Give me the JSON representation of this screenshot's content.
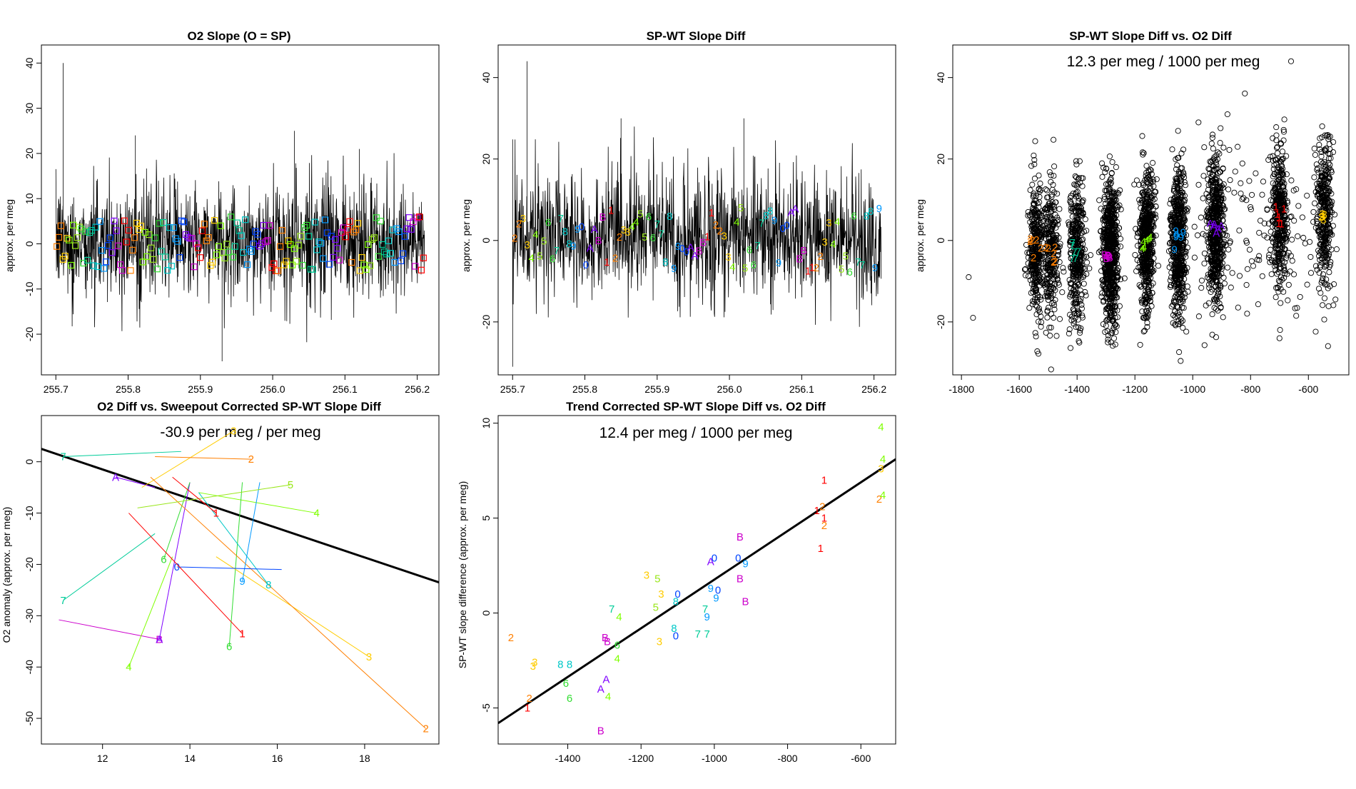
{
  "figure": {
    "background": "#ffffff"
  },
  "palette": {
    "1": "#ff0000",
    "2": "#ff7f00",
    "3": "#ffcc00",
    "4": "#7fff00",
    "5": "#99e61a",
    "6": "#33dd33",
    "7": "#00cc99",
    "8": "#00c8c8",
    "9": "#0099ff",
    "0": "#0044ff",
    "A": "#7f00ff",
    "B": "#cc00cc"
  },
  "chart_data": [
    {
      "id": "p1",
      "type": "line",
      "title": "O2 Slope (O = SP)",
      "xlabel": "",
      "ylabel": "approx. per meg",
      "xlim": [
        255.68,
        256.23
      ],
      "ylim": [
        -29,
        44
      ],
      "xticks": [
        255.7,
        255.8,
        255.9,
        256.0,
        256.1,
        256.2
      ],
      "xtick_labels": [
        "255.7",
        "255.8",
        "255.9",
        "256.0",
        "256.1",
        "256.2"
      ],
      "yticks": [
        -20,
        -10,
        0,
        10,
        20,
        30,
        40
      ],
      "ytick_labels": [
        "-20",
        "-10",
        "0",
        "10",
        "20",
        "30",
        "40"
      ],
      "series": [
        {
          "name": "O2 slope trace",
          "color": "#000000",
          "x_range": [
            255.7,
            256.21
          ],
          "n_points": 1200,
          "band": [
            -10,
            11
          ],
          "spikes": [
            [
              255.71,
              40
            ],
            [
              255.93,
              -26
            ],
            [
              255.81,
              24
            ],
            [
              256.03,
              25
            ],
            [
              256.12,
              21
            ]
          ]
        }
      ],
      "markers": {
        "shape": "square",
        "x_range": [
          255.7,
          256.21
        ],
        "count": 180,
        "y_center": 0,
        "y_spread": 6,
        "cycle": [
          "2",
          "3",
          "4",
          "5",
          "6",
          "7",
          "8",
          "9",
          "0",
          "A",
          "B",
          "1"
        ]
      },
      "annotation": ""
    },
    {
      "id": "p2",
      "type": "line",
      "title": "SP-WT Slope Diff",
      "xlabel": "",
      "ylabel": "approx. per meg",
      "xlim": [
        255.68,
        256.23
      ],
      "ylim": [
        -33,
        48
      ],
      "xticks": [
        255.7,
        255.8,
        255.9,
        256.0,
        256.1,
        256.2
      ],
      "xtick_labels": [
        "255.7",
        "255.8",
        "255.9",
        "256.0",
        "256.1",
        "256.2"
      ],
      "yticks": [
        -20,
        0,
        20,
        40
      ],
      "ytick_labels": [
        "-20",
        "0",
        "20",
        "40"
      ],
      "series": [
        {
          "name": "SP-WT slope difference trace",
          "color": "#000000",
          "x_range": [
            255.7,
            256.21
          ],
          "n_points": 1200,
          "band": [
            -12,
            14
          ],
          "spikes": [
            [
              255.72,
              44
            ],
            [
              255.7,
              -31
            ],
            [
              255.85,
              30
            ],
            [
              256.02,
              30
            ]
          ]
        }
      ],
      "markers": {
        "shape": "label",
        "x_range": [
          255.7,
          256.21
        ],
        "count": 88,
        "y_center": 0,
        "y_spread": 8,
        "cycle": [
          "2",
          "3",
          "4",
          "5",
          "6",
          "7",
          "8",
          "9",
          "0",
          "A",
          "B",
          "1"
        ]
      },
      "annotation": ""
    },
    {
      "id": "p3",
      "type": "scatter",
      "title": "SP-WT Slope Diff vs. O2 Diff",
      "xlabel": "",
      "ylabel": "approx. per meg",
      "xlim": [
        -1830,
        -460
      ],
      "ylim": [
        -33,
        48
      ],
      "xticks": [
        -1800,
        -1600,
        -1400,
        -1200,
        -1000,
        -800,
        -600
      ],
      "xtick_labels": [
        "-1800",
        "-1600",
        "-1400",
        "-1200",
        "-1000",
        "-800",
        "-600"
      ],
      "yticks": [
        -20,
        0,
        20,
        40
      ],
      "ytick_labels": [
        "-20",
        "0",
        "20",
        "40"
      ],
      "clusters": [
        {
          "x": -1545,
          "y": -2,
          "n": 340,
          "color": "#ff7f00",
          "label": "2"
        },
        {
          "x": -1490,
          "y": -3,
          "n": 300,
          "color": "#ff7f00",
          "label": "2"
        },
        {
          "x": -1400,
          "y": -3,
          "n": 380,
          "color": "#00cc99",
          "label": "7"
        },
        {
          "x": -1285,
          "y": -3,
          "n": 720,
          "color": "#cc00cc",
          "label": "B"
        },
        {
          "x": -1160,
          "y": 0,
          "n": 560,
          "color": "#7fff00",
          "label": "4"
        },
        {
          "x": -1050,
          "y": 0,
          "n": 560,
          "color": "#0099ff",
          "label": "9"
        },
        {
          "x": -920,
          "y": 2,
          "n": 560,
          "color": "#7f00ff",
          "label": "A"
        },
        {
          "x": -700,
          "y": 6,
          "n": 380,
          "color": "#ff0000",
          "label": "1"
        },
        {
          "x": -545,
          "y": 7,
          "n": 340,
          "color": "#ffcc00",
          "label": "3"
        }
      ],
      "outliers": [
        [
          -1775,
          -9
        ],
        [
          -1760,
          -19
        ],
        [
          -660,
          44
        ],
        [
          -880,
          31
        ],
        [
          -980,
          29
        ],
        [
          -700,
          -24
        ]
      ],
      "annotation": "12.3 per meg / 1000 per meg"
    },
    {
      "id": "p4",
      "type": "line",
      "title": "O2 Diff vs. Sweepout Corrected SP-WT Slope Diff",
      "xlabel": "",
      "ylabel": "O2 anomaly (approx. per meg)",
      "xlim": [
        10.6,
        19.7
      ],
      "ylim": [
        -55,
        9
      ],
      "xticks": [
        12,
        14,
        16,
        18
      ],
      "xtick_labels": [
        "12",
        "14",
        "16",
        "18"
      ],
      "yticks": [
        -50,
        -40,
        -30,
        -20,
        -10,
        0
      ],
      "ytick_labels": [
        "-50",
        "-40",
        "-30",
        "-20",
        "-10",
        "0"
      ],
      "fit": {
        "x": [
          10.6,
          19.7
        ],
        "y": [
          2.5,
          -23.5
        ]
      },
      "segments": [
        {
          "label": "B",
          "x1": 11.0,
          "y1": -30.8,
          "x2": 13.3,
          "y2": -34.6,
          "lx": 13.3,
          "ly": -34.6
        },
        {
          "label": "A",
          "x1": 12.3,
          "y1": -3.0,
          "x2": 13.2,
          "y2": -5.0,
          "lx": 12.3,
          "ly": -3.0
        },
        {
          "label": "A",
          "x1": 13.3,
          "y1": -34.6,
          "x2": 14.0,
          "y2": -4.0,
          "lx": 13.3,
          "ly": -34.6
        },
        {
          "label": "4",
          "x1": 12.6,
          "y1": -40.0,
          "x2": 13.6,
          "y2": -18.5,
          "lx": 12.6,
          "ly": -40.0
        },
        {
          "label": "4",
          "x1": 14.2,
          "y1": -6.0,
          "x2": 16.9,
          "y2": -10.0,
          "lx": 16.9,
          "ly": -10.0
        },
        {
          "label": "6",
          "x1": 14.9,
          "y1": -36.0,
          "x2": 15.2,
          "y2": -4.0,
          "lx": 14.9,
          "ly": -36.0
        },
        {
          "label": "6",
          "x1": 13.4,
          "y1": -19.0,
          "x2": 14.0,
          "y2": -4.0,
          "lx": 13.4,
          "ly": -19.0
        },
        {
          "label": "3",
          "x1": 14.6,
          "y1": -18.5,
          "x2": 18.1,
          "y2": -38.0,
          "lx": 18.1,
          "ly": -38.0
        },
        {
          "label": "3",
          "x1": 12.9,
          "y1": -5.0,
          "x2": 15.0,
          "y2": 6.0,
          "lx": 15.0,
          "ly": 6.0
        },
        {
          "label": "2",
          "x1": 13.1,
          "y1": -3.0,
          "x2": 19.4,
          "y2": -52.0,
          "lx": 19.4,
          "ly": -52.0
        },
        {
          "label": "2",
          "x1": 13.2,
          "y1": 1.0,
          "x2": 15.4,
          "y2": 0.5,
          "lx": 15.4,
          "ly": 0.5
        },
        {
          "label": "7",
          "x1": 11.1,
          "y1": -27.0,
          "x2": 13.2,
          "y2": -14.0,
          "lx": 11.1,
          "ly": -27.0
        },
        {
          "label": "7",
          "x1": 11.1,
          "y1": 1.0,
          "x2": 13.8,
          "y2": 2.0,
          "lx": 11.1,
          "ly": 1.0
        },
        {
          "label": "8",
          "x1": 15.8,
          "y1": -24.0,
          "x2": 14.2,
          "y2": -6.0,
          "lx": 15.8,
          "ly": -24.0
        },
        {
          "label": "9",
          "x1": 15.2,
          "y1": -23.3,
          "x2": 15.6,
          "y2": -4.0,
          "lx": 15.2,
          "ly": -23.3
        },
        {
          "label": "0",
          "x1": 13.7,
          "y1": -20.5,
          "x2": 16.1,
          "y2": -21.0,
          "lx": 13.7,
          "ly": -20.5
        },
        {
          "label": "5",
          "x1": 12.8,
          "y1": -9.0,
          "x2": 16.3,
          "y2": -4.5,
          "lx": 16.3,
          "ly": -4.5
        },
        {
          "label": "1",
          "x1": 12.6,
          "y1": -10.0,
          "x2": 15.2,
          "y2": -33.5,
          "lx": 15.2,
          "ly": -33.5
        },
        {
          "label": "1",
          "x1": 13.6,
          "y1": -3.0,
          "x2": 14.6,
          "y2": -10.0,
          "lx": 14.6,
          "ly": -10.0
        }
      ],
      "annotation": "-30.9 per meg / per meg"
    },
    {
      "id": "p5",
      "type": "scatter",
      "title": "Trend Corrected SP-WT Slope Diff vs. O2 Diff",
      "xlabel": "",
      "ylabel": "SP-WT slope difference (approx. per meg)",
      "xlim": [
        -1590,
        -505
      ],
      "ylim": [
        -6.9,
        10.4
      ],
      "xticks": [
        -1400,
        -1200,
        -1000,
        -800,
        -600
      ],
      "xtick_labels": [
        "-1400",
        "-1200",
        "-1000",
        "-800",
        "-600"
      ],
      "yticks": [
        -5,
        0,
        5,
        10
      ],
      "ytick_labels": [
        "-5",
        "0",
        "5",
        "10"
      ],
      "fit": {
        "x": [
          -1590,
          -505
        ],
        "y": [
          -5.8,
          8.1
        ]
      },
      "points": [
        {
          "label": "2",
          "x": -1555,
          "y": -1.3
        },
        {
          "label": "3",
          "x": -1490,
          "y": -2.6
        },
        {
          "label": "3",
          "x": -1495,
          "y": -2.8
        },
        {
          "label": "2",
          "x": -1505,
          "y": -4.5
        },
        {
          "label": "1",
          "x": -1510,
          "y": -5.0
        },
        {
          "label": "8",
          "x": -1420,
          "y": -2.7
        },
        {
          "label": "8",
          "x": -1395,
          "y": -2.7
        },
        {
          "label": "6",
          "x": -1405,
          "y": -3.7
        },
        {
          "label": "6",
          "x": -1395,
          "y": -4.5
        },
        {
          "label": "A",
          "x": -1310,
          "y": -4.0
        },
        {
          "label": "A",
          "x": -1295,
          "y": -3.5
        },
        {
          "label": "B",
          "x": -1310,
          "y": -6.2
        },
        {
          "label": "B",
          "x": -1298,
          "y": -1.3
        },
        {
          "label": "B",
          "x": -1292,
          "y": -1.5
        },
        {
          "label": "4",
          "x": -1290,
          "y": -4.4
        },
        {
          "label": "7",
          "x": -1280,
          "y": 0.2
        },
        {
          "label": "4",
          "x": -1260,
          "y": -0.2
        },
        {
          "label": "6",
          "x": -1265,
          "y": -1.7
        },
        {
          "label": "4",
          "x": -1265,
          "y": -2.4
        },
        {
          "label": "3",
          "x": -1185,
          "y": 2.0
        },
        {
          "label": "5",
          "x": -1155,
          "y": 1.8
        },
        {
          "label": "3",
          "x": -1145,
          "y": 1.0
        },
        {
          "label": "5",
          "x": -1160,
          "y": 0.3
        },
        {
          "label": "3",
          "x": -1150,
          "y": -1.5
        },
        {
          "label": "0",
          "x": -1100,
          "y": 1.0
        },
        {
          "label": "8",
          "x": -1105,
          "y": 0.6
        },
        {
          "label": "8",
          "x": -1110,
          "y": -0.8
        },
        {
          "label": "0",
          "x": -1105,
          "y": -1.2
        },
        {
          "label": "7",
          "x": -1045,
          "y": -1.1
        },
        {
          "label": "7",
          "x": -1020,
          "y": -1.1
        },
        {
          "label": "9",
          "x": -1020,
          "y": -0.2
        },
        {
          "label": "7",
          "x": -1025,
          "y": 0.2
        },
        {
          "label": "9",
          "x": -1010,
          "y": 1.3
        },
        {
          "label": "A",
          "x": -1010,
          "y": 2.7
        },
        {
          "label": "0",
          "x": -1000,
          "y": 2.9
        },
        {
          "label": "9",
          "x": -995,
          "y": 0.8
        },
        {
          "label": "0",
          "x": -990,
          "y": 1.2
        },
        {
          "label": "B",
          "x": -930,
          "y": 4.0
        },
        {
          "label": "0",
          "x": -935,
          "y": 2.9
        },
        {
          "label": "B",
          "x": -930,
          "y": 1.8
        },
        {
          "label": "9",
          "x": -915,
          "y": 2.6
        },
        {
          "label": "B",
          "x": -915,
          "y": 0.6
        },
        {
          "label": "1",
          "x": -700,
          "y": 7.0
        },
        {
          "label": "1",
          "x": -720,
          "y": 5.4
        },
        {
          "label": "2",
          "x": -705,
          "y": 5.6
        },
        {
          "label": "1",
          "x": -700,
          "y": 5.0
        },
        {
          "label": "2",
          "x": -700,
          "y": 4.6
        },
        {
          "label": "1",
          "x": -710,
          "y": 3.4
        },
        {
          "label": "4",
          "x": -545,
          "y": 9.8
        },
        {
          "label": "4",
          "x": -540,
          "y": 8.1
        },
        {
          "label": "3",
          "x": -545,
          "y": 7.6
        },
        {
          "label": "2",
          "x": -550,
          "y": 6.0
        },
        {
          "label": "4",
          "x": -540,
          "y": 6.2
        }
      ],
      "annotation": "12.4 per meg / 1000 per meg"
    }
  ]
}
